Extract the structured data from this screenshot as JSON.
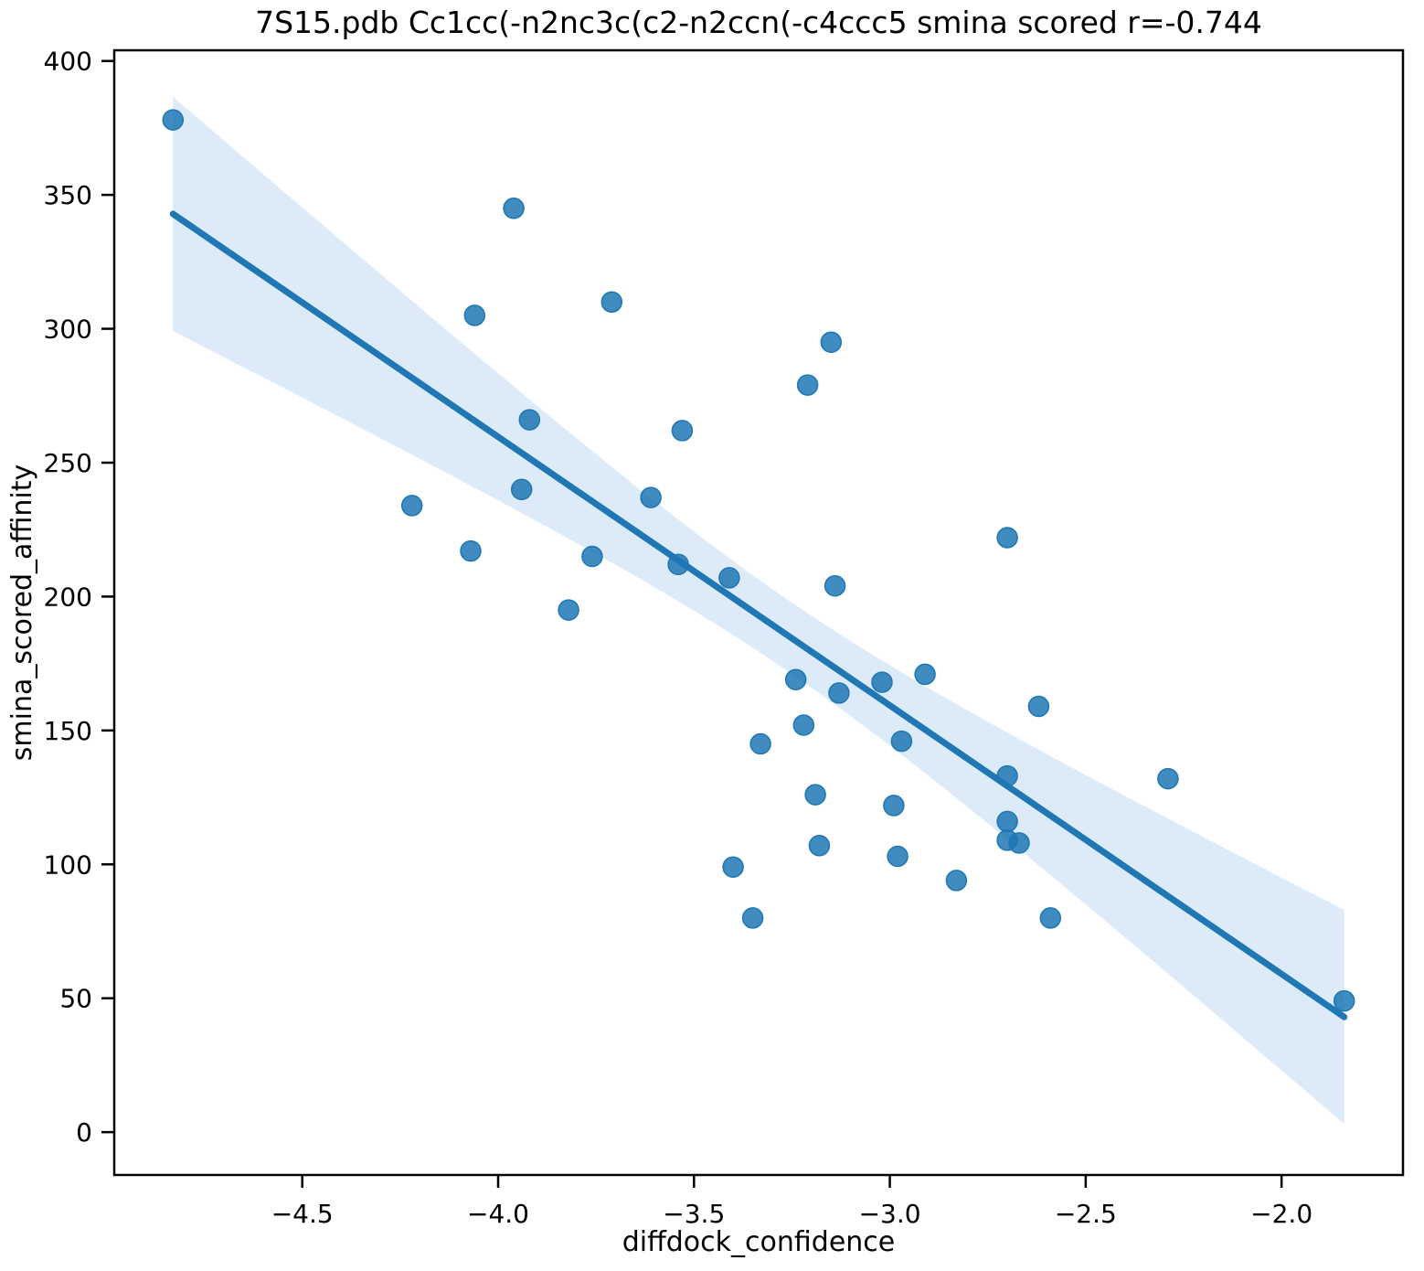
{
  "figure": {
    "title": "7S15.pdb Cc1cc(-n2nc3c(c2-n2ccn(-c4ccc5 smina scored r=-0.744",
    "xlabel": "diffdock_confidence",
    "ylabel": "smina_scored_affinity"
  },
  "chart_data": {
    "type": "scatter",
    "title": "7S15.pdb Cc1cc(-n2nc3c(c2-n2ccn(-c4ccc5 smina scored r=-0.744",
    "xlabel": "diffdock_confidence",
    "ylabel": "smina_scored_affinity",
    "correlation_r": -0.744,
    "legend": "none",
    "grid": false,
    "xlim": [
      -4.98,
      -1.69
    ],
    "ylim": [
      -16,
      404
    ],
    "xticks": {
      "values": [
        -4.5,
        -4.0,
        -3.5,
        -3.0,
        -2.5,
        -2.0
      ],
      "labels": [
        "−4.5",
        "−4.0",
        "−3.5",
        "−3.0",
        "−2.5",
        "−2.0"
      ]
    },
    "yticks": {
      "values": [
        0,
        50,
        100,
        150,
        200,
        250,
        300,
        350,
        400
      ],
      "labels": [
        "0",
        "50",
        "100",
        "150",
        "200",
        "250",
        "300",
        "350",
        "400"
      ]
    },
    "points": [
      [
        -4.83,
        378
      ],
      [
        -4.22,
        234
      ],
      [
        -4.07,
        217
      ],
      [
        -4.06,
        305
      ],
      [
        -3.96,
        345
      ],
      [
        -3.94,
        240
      ],
      [
        -3.92,
        266
      ],
      [
        -3.82,
        195
      ],
      [
        -3.76,
        215
      ],
      [
        -3.71,
        310
      ],
      [
        -3.61,
        237
      ],
      [
        -3.54,
        212
      ],
      [
        -3.53,
        262
      ],
      [
        -3.41,
        207
      ],
      [
        -3.4,
        99
      ],
      [
        -3.35,
        80
      ],
      [
        -3.33,
        145
      ],
      [
        -3.24,
        169
      ],
      [
        -3.22,
        152
      ],
      [
        -3.21,
        279
      ],
      [
        -3.19,
        126
      ],
      [
        -3.18,
        107
      ],
      [
        -3.15,
        295
      ],
      [
        -3.14,
        204
      ],
      [
        -3.13,
        164
      ],
      [
        -3.02,
        168
      ],
      [
        -2.99,
        122
      ],
      [
        -2.98,
        103
      ],
      [
        -2.97,
        146
      ],
      [
        -2.91,
        171
      ],
      [
        -2.83,
        94
      ],
      [
        -2.7,
        222
      ],
      [
        -2.7,
        133
      ],
      [
        -2.7,
        116
      ],
      [
        -2.7,
        109
      ],
      [
        -2.67,
        108
      ],
      [
        -2.62,
        159
      ],
      [
        -2.59,
        80
      ],
      [
        -2.29,
        132
      ],
      [
        -1.84,
        49
      ]
    ],
    "regression_line": {
      "x": [
        -4.83,
        -1.84
      ],
      "y": [
        342.9,
        43.0
      ]
    },
    "confidence_band": {
      "x_range": [
        -4.83,
        -1.84
      ],
      "center_x": -3.26,
      "c1": 177,
      "c2": 704
    },
    "colors": {
      "point_fill": "rgba(31,119,180,0.85)",
      "point_edge": "#1f77b4",
      "line": "#1f77b4",
      "band": "#dcebf7",
      "spine": "#000000"
    },
    "marker_radius": 11
  }
}
